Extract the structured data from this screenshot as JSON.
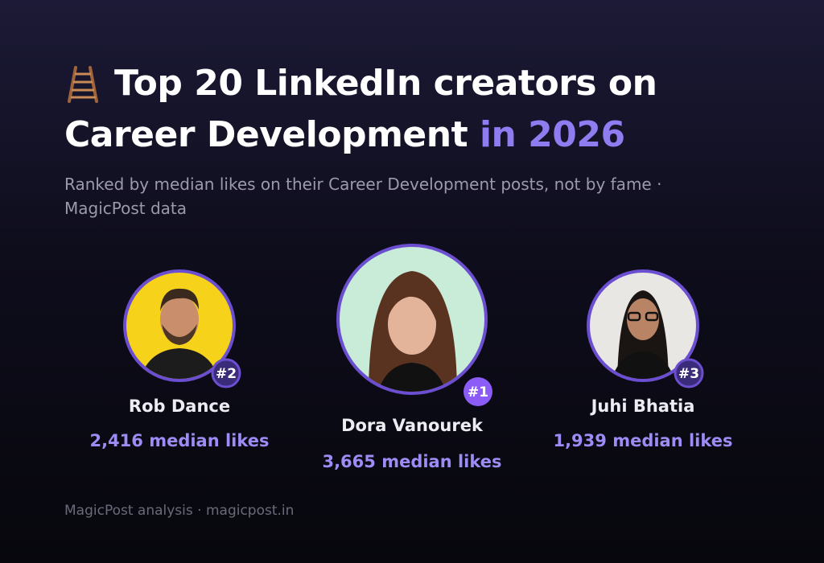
{
  "header": {
    "title": "Top 20 LinkedIn creators on",
    "title_line2": "Career Development",
    "title_highlight": "in 2026",
    "subtitle": "Ranked by median likes on their Career Development posts, not by fame · MagicPost data"
  },
  "creators": [
    {
      "rank": "#2",
      "name": "Rob Dance",
      "likes": "2,416 median likes"
    },
    {
      "rank": "#1",
      "name": "Dora Vanourek",
      "likes": "3,665 median likes"
    },
    {
      "rank": "#3",
      "name": "Juhi Bhatia",
      "likes": "1,939 median likes"
    }
  ],
  "footer": "MagicPost analysis · magicpost.in"
}
